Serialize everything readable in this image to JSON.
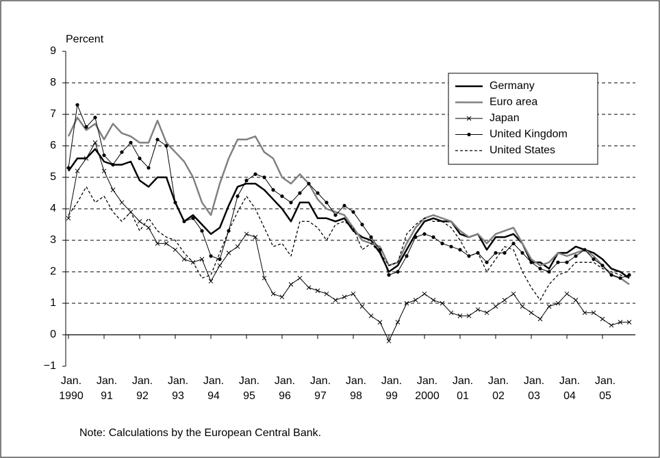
{
  "chart_data": {
    "type": "line",
    "y_label": "Percent",
    "note": "Note: Calculations by the European Central Bank.",
    "categories": [
      "Jan. 1990",
      null,
      null,
      null,
      "Jan. 91",
      null,
      null,
      null,
      "Jan. 92",
      null,
      null,
      null,
      "Jan. 93",
      null,
      null,
      null,
      "Jan. 94",
      null,
      null,
      null,
      "Jan. 95",
      null,
      null,
      null,
      "Jan. 96",
      null,
      null,
      null,
      "Jan. 97",
      null,
      null,
      null,
      "Jan. 98",
      null,
      null,
      null,
      "Jan. 99",
      null,
      null,
      null,
      "Jan. 2000",
      null,
      null,
      null,
      "Jan. 01",
      null,
      null,
      null,
      "Jan. 02",
      null,
      null,
      null,
      "Jan. 03",
      null,
      null,
      null,
      "Jan. 04",
      null,
      null,
      null,
      "Jan. 05",
      null,
      null,
      null
    ],
    "ylim": [
      -1,
      9
    ],
    "yticks": [
      {
        "value": -1,
        "label": "−1"
      },
      0,
      1,
      2,
      3,
      4,
      5,
      6,
      7,
      8,
      9
    ],
    "grid": true,
    "legend": "top-right",
    "series": [
      {
        "name": "Germany",
        "color": "#000000",
        "width": 2.5,
        "dash": false,
        "marker": "none",
        "values": [
          5.2,
          5.6,
          5.6,
          5.9,
          5.5,
          5.4,
          5.4,
          5.5,
          4.9,
          4.7,
          5.0,
          5.0,
          4.2,
          3.6,
          3.8,
          3.5,
          3.2,
          3.4,
          4.1,
          4.7,
          4.8,
          4.8,
          4.6,
          4.3,
          4.0,
          3.6,
          4.2,
          4.2,
          3.7,
          3.7,
          3.6,
          3.7,
          3.3,
          3.1,
          3.0,
          2.6,
          2.0,
          2.2,
          2.7,
          3.2,
          3.6,
          3.7,
          3.6,
          3.6,
          3.2,
          3.1,
          3.2,
          2.7,
          3.1,
          3.1,
          3.2,
          2.9,
          2.3,
          2.3,
          2.1,
          2.6,
          2.6,
          2.8,
          2.7,
          2.6,
          2.4,
          2.1,
          2.0,
          1.8
        ]
      },
      {
        "name": "Euro area",
        "color": "#808080",
        "width": 2.5,
        "dash": false,
        "marker": "none",
        "values": [
          6.3,
          6.9,
          6.5,
          6.7,
          6.2,
          6.7,
          6.4,
          6.3,
          6.1,
          6.1,
          6.8,
          6.1,
          5.8,
          5.5,
          5.0,
          4.2,
          3.8,
          4.8,
          5.6,
          6.2,
          6.2,
          6.3,
          5.8,
          5.6,
          5.0,
          4.8,
          5.1,
          4.8,
          4.3,
          4.0,
          3.9,
          3.8,
          3.4,
          3.0,
          2.9,
          2.8,
          2.2,
          2.3,
          2.9,
          3.4,
          3.7,
          3.8,
          3.7,
          3.6,
          3.3,
          3.1,
          3.2,
          2.9,
          3.2,
          3.3,
          3.4,
          2.9,
          2.4,
          2.2,
          2.3,
          2.6,
          2.5,
          2.6,
          2.7,
          2.5,
          2.2,
          1.9,
          1.8,
          1.6
        ]
      },
      {
        "name": "Japan",
        "color": "#000000",
        "width": 1,
        "dash": false,
        "marker": "x",
        "values": [
          3.7,
          5.2,
          5.6,
          6.1,
          5.2,
          4.6,
          4.2,
          3.9,
          3.6,
          3.4,
          2.9,
          2.9,
          2.7,
          2.4,
          2.3,
          2.4,
          1.7,
          2.2,
          2.6,
          2.8,
          3.2,
          3.1,
          1.8,
          1.3,
          1.2,
          1.6,
          1.8,
          1.5,
          1.4,
          1.3,
          1.1,
          1.2,
          1.3,
          0.9,
          0.6,
          0.4,
          -0.2,
          0.4,
          1.0,
          1.1,
          1.3,
          1.1,
          1.0,
          0.7,
          0.6,
          0.6,
          0.8,
          0.7,
          0.9,
          1.1,
          1.3,
          0.9,
          0.7,
          0.5,
          0.9,
          1.0,
          1.3,
          1.1,
          0.7,
          0.7,
          0.5,
          0.3,
          0.4,
          0.4
        ]
      },
      {
        "name": "United Kingdom",
        "color": "#000000",
        "width": 1,
        "dash": false,
        "marker": "dot",
        "values": [
          5.3,
          7.3,
          6.6,
          6.9,
          5.7,
          5.4,
          5.8,
          6.1,
          5.6,
          5.3,
          6.2,
          6.0,
          4.2,
          3.6,
          3.7,
          3.3,
          2.5,
          2.4,
          3.3,
          4.4,
          4.9,
          5.1,
          5.0,
          4.6,
          4.4,
          4.2,
          4.5,
          4.8,
          4.5,
          4.2,
          3.8,
          4.1,
          3.9,
          3.5,
          3.1,
          2.7,
          1.9,
          2.0,
          2.5,
          3.1,
          3.2,
          3.1,
          2.9,
          2.8,
          2.7,
          2.5,
          2.6,
          2.3,
          2.6,
          2.6,
          2.9,
          2.6,
          2.3,
          2.1,
          2.0,
          2.3,
          2.3,
          2.5,
          2.7,
          2.4,
          2.2,
          1.9,
          1.8,
          1.9
        ]
      },
      {
        "name": "United States",
        "color": "#000000",
        "width": 1.3,
        "dash": true,
        "marker": "none",
        "values": [
          3.8,
          4.2,
          4.7,
          4.2,
          4.4,
          3.9,
          3.6,
          3.9,
          3.3,
          3.7,
          3.3,
          3.1,
          3.0,
          2.6,
          2.3,
          1.8,
          1.9,
          2.6,
          3.3,
          3.9,
          4.4,
          4.0,
          3.4,
          2.8,
          2.9,
          2.5,
          3.6,
          3.6,
          3.4,
          3.0,
          3.5,
          3.6,
          3.4,
          2.7,
          2.9,
          2.6,
          2.2,
          2.3,
          3.2,
          3.5,
          3.7,
          3.6,
          3.6,
          3.4,
          3.0,
          2.5,
          2.6,
          2.0,
          2.4,
          2.8,
          2.7,
          2.0,
          1.5,
          1.1,
          1.6,
          1.9,
          2.0,
          2.3,
          2.3,
          2.3,
          2.1,
          2.0,
          1.9,
          1.8
        ]
      }
    ]
  }
}
